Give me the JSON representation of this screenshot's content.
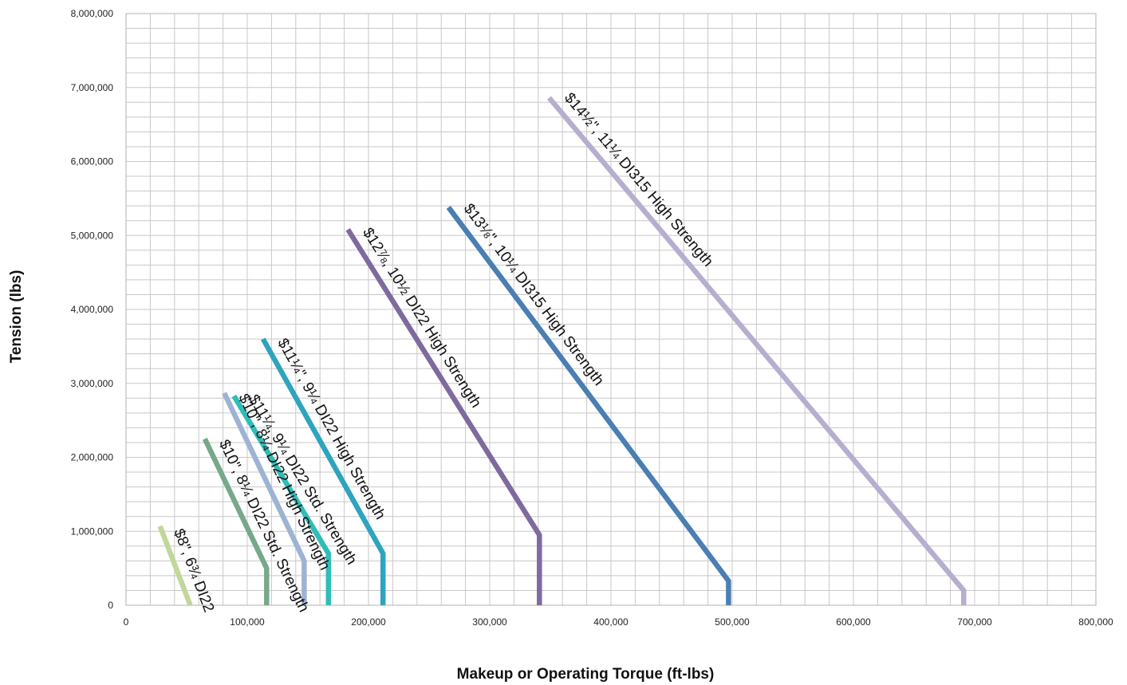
{
  "chart_data": {
    "type": "line",
    "title": "",
    "xlabel": "Makeup or Operating Torque (ft-lbs)",
    "ylabel": "Tension (lbs)",
    "xlim": [
      0,
      800000
    ],
    "ylim": [
      0,
      8000000
    ],
    "x_tick_labels": [
      "0",
      "100,000",
      "200,000",
      "300,000",
      "400,000",
      "500,000",
      "600,000",
      "700,000",
      "800,000"
    ],
    "y_tick_labels": [
      "0",
      "1,000,000",
      "2,000,000",
      "3,000,000",
      "4,000,000",
      "5,000,000",
      "6,000,000",
      "7,000,000",
      "8,000,000"
    ],
    "grid": true,
    "legend": "none",
    "series": [
      {
        "name": "$8\", 6¾ DI22",
        "color": "#c3d69b",
        "points": [
          [
            28000,
            1070000
          ],
          [
            53000,
            0
          ]
        ]
      },
      {
        "name": "$10\", 8¼ DI22 Std. Strength",
        "color": "#77a88a",
        "points": [
          [
            65000,
            2250000
          ],
          [
            116000,
            500000
          ],
          [
            116000,
            0
          ]
        ]
      },
      {
        "name": "$10\", 8¼ DI22 High Strength",
        "color": "#9db3d4",
        "points": [
          [
            81000,
            2870000
          ],
          [
            147000,
            600000
          ],
          [
            147000,
            0
          ]
        ]
      },
      {
        "name": "$11¼, 9¼ DI22 Std. Strength",
        "color": "#2fbdb8",
        "points": [
          [
            89000,
            2830000
          ],
          [
            167000,
            700000
          ],
          [
            167000,
            0
          ]
        ]
      },
      {
        "name": "$11¼\", 9¼ DI22 High Strength",
        "color": "#2ea4be",
        "points": [
          [
            113000,
            3600000
          ],
          [
            212000,
            700000
          ],
          [
            212000,
            0
          ]
        ]
      },
      {
        "name": "$12⅞, 10½ DI22 High Strength",
        "color": "#7f6a9e",
        "points": [
          [
            183000,
            5080000
          ],
          [
            341000,
            950000
          ],
          [
            341000,
            0
          ]
        ]
      },
      {
        "name": "$13⅛\", 10¼ DI315 High Strength",
        "color": "#4a7fb2",
        "points": [
          [
            266000,
            5380000
          ],
          [
            497000,
            330000
          ],
          [
            497000,
            0
          ]
        ]
      },
      {
        "name": "$14½\", 11¼ DI315 High Strength",
        "color": "#b7aecf",
        "points": [
          [
            349000,
            6860000
          ],
          [
            691000,
            200000
          ],
          [
            691000,
            0
          ]
        ]
      }
    ]
  }
}
